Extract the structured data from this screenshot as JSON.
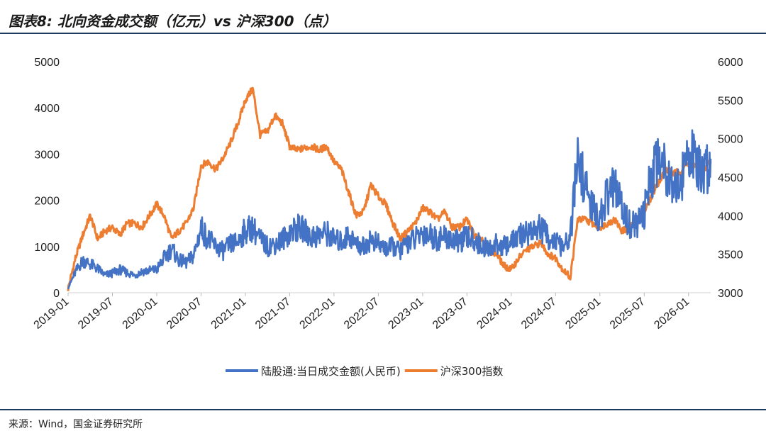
{
  "header": {
    "title": "图表8:  北向资金成交额（亿元）vs 沪深300（点）"
  },
  "footer": {
    "source": "来源：Wind，国金证券研究所"
  },
  "chart_data": {
    "type": "line",
    "title": "图表8:  北向资金成交额（亿元）vs 沪深300（点）",
    "x_ticks": [
      "2019-01",
      "2019-07",
      "2020-01",
      "2020-07",
      "2021-01",
      "2021-07",
      "2022-01",
      "2022-07",
      "2023-01",
      "2023-07",
      "2024-01",
      "2024-07",
      "2025-01",
      "2025-07",
      "2026-01"
    ],
    "y_left": {
      "ticks": [
        0,
        1000,
        2000,
        3000,
        4000,
        5000
      ],
      "ylim": [
        0,
        5000
      ]
    },
    "y_right": {
      "ticks": [
        3000,
        3500,
        4000,
        4500,
        5000,
        5500,
        6000
      ],
      "ylim": [
        3000,
        6000
      ]
    },
    "x_range": [
      "2019-01",
      "2026-04"
    ],
    "legend": {
      "placement": "bottom-center"
    },
    "series": [
      {
        "name": "陆股通:当日成交金额(人民币)",
        "axis": "left",
        "color": "#4472C4",
        "points": [
          [
            "2019-01",
            100
          ],
          [
            "2019-02",
            450
          ],
          [
            "2019-03",
            700
          ],
          [
            "2019-04",
            620
          ],
          [
            "2019-05",
            520
          ],
          [
            "2019-06",
            380
          ],
          [
            "2019-07",
            420
          ],
          [
            "2019-08",
            500
          ],
          [
            "2019-09",
            430
          ],
          [
            "2019-10",
            380
          ],
          [
            "2019-11",
            460
          ],
          [
            "2019-12",
            480
          ],
          [
            "2020-01",
            500
          ],
          [
            "2020-02",
            750
          ],
          [
            "2020-03",
            950
          ],
          [
            "2020-04",
            700
          ],
          [
            "2020-05",
            650
          ],
          [
            "2020-06",
            800
          ],
          [
            "2020-07",
            1400
          ],
          [
            "2020-08",
            1150
          ],
          [
            "2020-09",
            1000
          ],
          [
            "2020-10",
            900
          ],
          [
            "2020-11",
            1050
          ],
          [
            "2020-12",
            1100
          ],
          [
            "2021-01",
            1350
          ],
          [
            "2021-02",
            1400
          ],
          [
            "2021-03",
            1150
          ],
          [
            "2021-04",
            1000
          ],
          [
            "2021-05",
            1050
          ],
          [
            "2021-06",
            1150
          ],
          [
            "2021-07",
            1300
          ],
          [
            "2021-08",
            1400
          ],
          [
            "2021-09",
            1350
          ],
          [
            "2021-10",
            1200
          ],
          [
            "2021-11",
            1250
          ],
          [
            "2021-12",
            1300
          ],
          [
            "2022-01",
            1150
          ],
          [
            "2022-02",
            1100
          ],
          [
            "2022-03",
            1250
          ],
          [
            "2022-04",
            1050
          ],
          [
            "2022-05",
            1000
          ],
          [
            "2022-06",
            1150
          ],
          [
            "2022-07",
            1050
          ],
          [
            "2022-08",
            950
          ],
          [
            "2022-09",
            1000
          ],
          [
            "2022-10",
            900
          ],
          [
            "2022-11",
            1100
          ],
          [
            "2022-12",
            1150
          ],
          [
            "2023-01",
            1300
          ],
          [
            "2023-02",
            1250
          ],
          [
            "2023-03",
            1150
          ],
          [
            "2023-04",
            1200
          ],
          [
            "2023-05",
            1150
          ],
          [
            "2023-06",
            1100
          ],
          [
            "2023-07",
            1200
          ],
          [
            "2023-08",
            1150
          ],
          [
            "2023-09",
            1000
          ],
          [
            "2023-10",
            950
          ],
          [
            "2023-11",
            1050
          ],
          [
            "2023-12",
            1000
          ],
          [
            "2024-01",
            1100
          ],
          [
            "2024-02",
            1200
          ],
          [
            "2024-03",
            1300
          ],
          [
            "2024-04",
            1350
          ],
          [
            "2024-05",
            1400
          ],
          [
            "2024-06",
            1200
          ],
          [
            "2024-07",
            1100
          ],
          [
            "2024-08",
            950
          ],
          [
            "2024-09",
            1200
          ],
          [
            "2024-10",
            2900
          ],
          [
            "2024-11",
            2300
          ],
          [
            "2024-12",
            1800
          ],
          [
            "2025-01",
            1600
          ],
          [
            "2025-02",
            2100
          ],
          [
            "2025-03",
            2300
          ],
          [
            "2025-04",
            1800
          ],
          [
            "2025-05",
            1500
          ],
          [
            "2025-06",
            1450
          ],
          [
            "2025-07",
            1700
          ],
          [
            "2025-08",
            2600
          ],
          [
            "2025-09",
            3000
          ],
          [
            "2025-10",
            2700
          ],
          [
            "2025-11",
            2400
          ],
          [
            "2025-12",
            2300
          ],
          [
            "2026-01",
            3200
          ],
          [
            "2026-02",
            2700
          ],
          [
            "2026-03",
            2500
          ],
          [
            "2026-04",
            2900
          ]
        ]
      },
      {
        "name": "沪深300指数",
        "axis": "right",
        "color": "#ED7D31",
        "points": [
          [
            "2019-01",
            3050
          ],
          [
            "2019-02",
            3450
          ],
          [
            "2019-03",
            3750
          ],
          [
            "2019-04",
            4000
          ],
          [
            "2019-05",
            3700
          ],
          [
            "2019-06",
            3800
          ],
          [
            "2019-07",
            3850
          ],
          [
            "2019-08",
            3750
          ],
          [
            "2019-09",
            3900
          ],
          [
            "2019-10",
            3900
          ],
          [
            "2019-11",
            3850
          ],
          [
            "2019-12",
            4000
          ],
          [
            "2020-01",
            4150
          ],
          [
            "2020-02",
            4000
          ],
          [
            "2020-03",
            3700
          ],
          [
            "2020-04",
            3800
          ],
          [
            "2020-05",
            3900
          ],
          [
            "2020-06",
            4100
          ],
          [
            "2020-07",
            4650
          ],
          [
            "2020-08",
            4700
          ],
          [
            "2020-09",
            4600
          ],
          [
            "2020-10",
            4750
          ],
          [
            "2020-11",
            4950
          ],
          [
            "2020-12",
            5200
          ],
          [
            "2021-01",
            5500
          ],
          [
            "2021-02",
            5650
          ],
          [
            "2021-03",
            5050
          ],
          [
            "2021-04",
            5100
          ],
          [
            "2021-05",
            5300
          ],
          [
            "2021-06",
            5200
          ],
          [
            "2021-07",
            4900
          ],
          [
            "2021-08",
            4850
          ],
          [
            "2021-09",
            4880
          ],
          [
            "2021-10",
            4900
          ],
          [
            "2021-11",
            4850
          ],
          [
            "2021-12",
            4900
          ],
          [
            "2022-01",
            4700
          ],
          [
            "2022-02",
            4600
          ],
          [
            "2022-03",
            4300
          ],
          [
            "2022-04",
            4000
          ],
          [
            "2022-05",
            4050
          ],
          [
            "2022-06",
            4400
          ],
          [
            "2022-07",
            4250
          ],
          [
            "2022-08",
            4150
          ],
          [
            "2022-09",
            3900
          ],
          [
            "2022-10",
            3700
          ],
          [
            "2022-11",
            3800
          ],
          [
            "2022-12",
            3900
          ],
          [
            "2023-01",
            4100
          ],
          [
            "2023-02",
            4050
          ],
          [
            "2023-03",
            3950
          ],
          [
            "2023-04",
            4050
          ],
          [
            "2023-05",
            3850
          ],
          [
            "2023-06",
            3850
          ],
          [
            "2023-07",
            3950
          ],
          [
            "2023-08",
            3750
          ],
          [
            "2023-09",
            3700
          ],
          [
            "2023-10",
            3550
          ],
          [
            "2023-11",
            3500
          ],
          [
            "2023-12",
            3350
          ],
          [
            "2024-01",
            3300
          ],
          [
            "2024-02",
            3450
          ],
          [
            "2024-03",
            3550
          ],
          [
            "2024-04",
            3600
          ],
          [
            "2024-05",
            3650
          ],
          [
            "2024-06",
            3500
          ],
          [
            "2024-07",
            3450
          ],
          [
            "2024-08",
            3300
          ],
          [
            "2024-09",
            3200
          ],
          [
            "2024-10",
            3950
          ],
          [
            "2024-11",
            3950
          ],
          [
            "2024-12",
            3900
          ],
          [
            "2025-01",
            3850
          ],
          [
            "2025-02",
            3900
          ],
          [
            "2025-03",
            3950
          ],
          [
            "2025-04",
            3800
          ],
          [
            "2025-05",
            3850
          ],
          [
            "2025-06",
            3900
          ],
          [
            "2025-07",
            4050
          ],
          [
            "2025-08",
            4250
          ],
          [
            "2025-09",
            4450
          ],
          [
            "2025-10",
            4600
          ],
          [
            "2025-11",
            4550
          ],
          [
            "2025-12",
            4580
          ],
          [
            "2026-01",
            4700
          ],
          [
            "2026-02",
            4650
          ],
          [
            "2026-03",
            4600
          ],
          [
            "2026-04",
            4700
          ]
        ]
      }
    ]
  }
}
